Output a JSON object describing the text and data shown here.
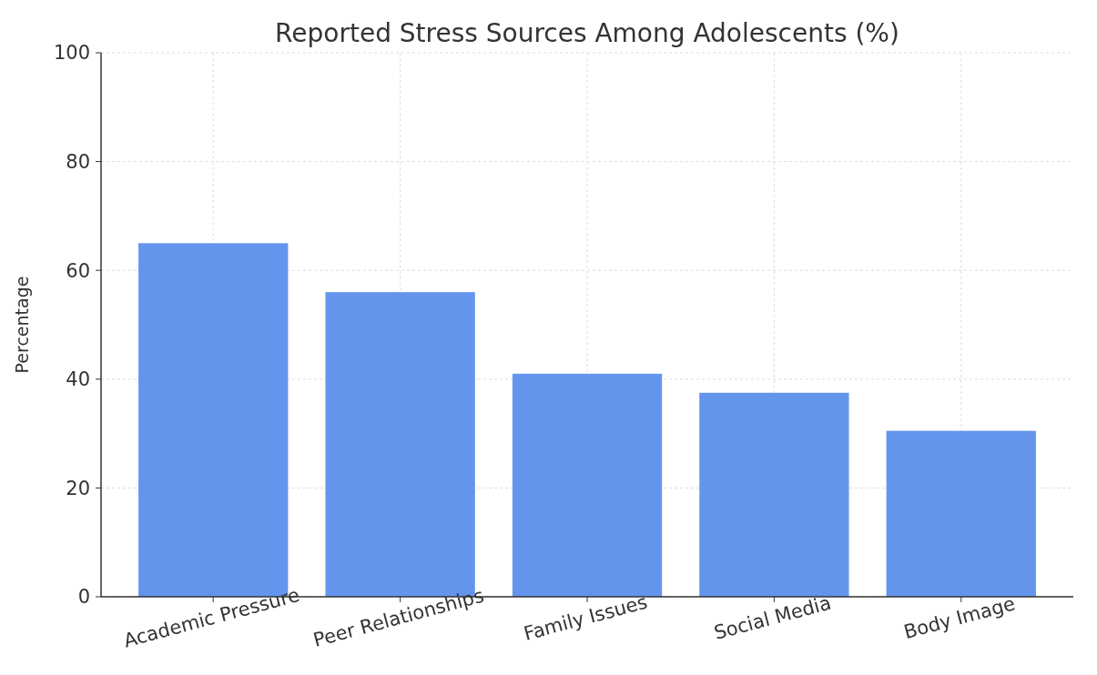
{
  "chart_data": {
    "type": "bar",
    "title": "Reported Stress Sources Among Adolescents (%)",
    "ylabel": "Percentage",
    "categories": [
      "Academic Pressure",
      "Peer Relationships",
      "Family Issues",
      "Social Media",
      "Body Image"
    ],
    "values": [
      65,
      56,
      41,
      37.5,
      30.5
    ],
    "color": "#6495ed",
    "ylim": [
      0,
      100
    ],
    "yticks": [
      0,
      20,
      40,
      60,
      80,
      100
    ],
    "grid": true
  }
}
